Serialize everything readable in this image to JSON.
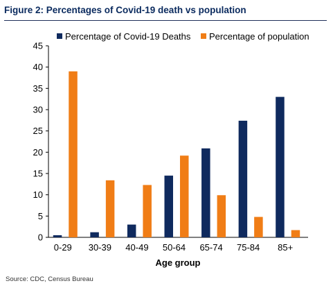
{
  "figure": {
    "title": "Figure 2: Percentages of Covid-19 death vs population",
    "source": "Source: CDC, Census Bureau"
  },
  "chart_data": {
    "type": "bar",
    "title": "",
    "xlabel": "Age group",
    "ylabel": "",
    "categories": [
      "0-29",
      "30-39",
      "40-49",
      "50-64",
      "65-74",
      "75-84",
      "85+"
    ],
    "series": [
      {
        "name": "Percentage of Covid-19 Deaths",
        "color": "#0f2a5e",
        "values": [
          0.5,
          1.2,
          3.0,
          14.5,
          20.9,
          27.4,
          33.0
        ]
      },
      {
        "name": "Percentage of population",
        "color": "#f07d16",
        "values": [
          39.0,
          13.4,
          12.3,
          19.2,
          9.9,
          4.8,
          1.7
        ]
      }
    ],
    "ylim": [
      0,
      45
    ],
    "yticks": [
      0,
      5,
      10,
      15,
      20,
      25,
      30,
      35,
      40,
      45
    ],
    "grid": false,
    "legend_position": "top"
  }
}
